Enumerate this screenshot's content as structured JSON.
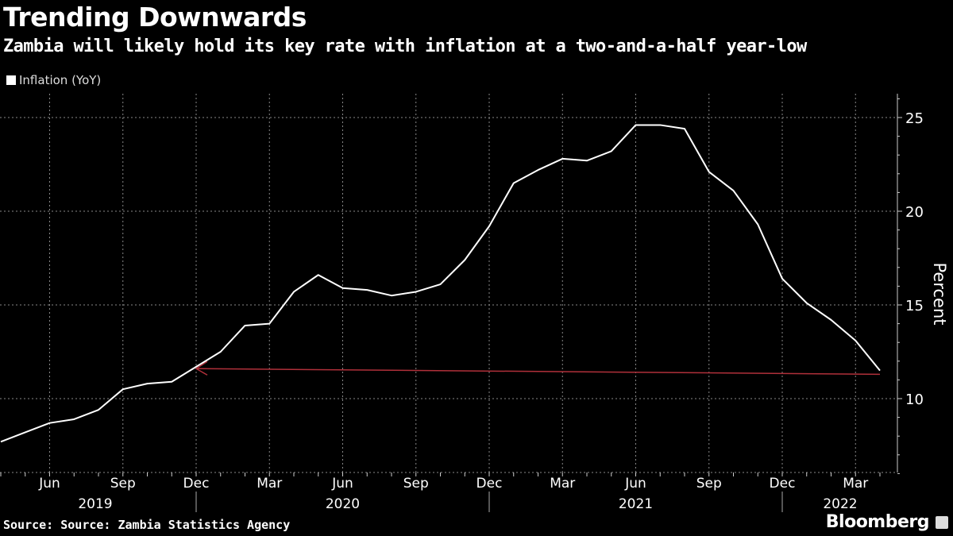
{
  "header": {
    "title": "Trending Downwards",
    "subtitle": "Zambia will likely hold its key rate with inflation at a two-and-a-half year-low"
  },
  "footer": {
    "source": "Source: Source: Zambia Statistics Agency",
    "brand": "Bloomberg"
  },
  "chart_data": {
    "type": "line",
    "title": "Trending Downwards",
    "ylabel": "Percent",
    "ylim": [
      6,
      26.2
    ],
    "yticks": [
      10,
      15,
      20,
      25
    ],
    "grid": true,
    "legend": {
      "placement": "top-left",
      "entries": [
        "Inflation (YoY)"
      ]
    },
    "month_ticks": [
      "Jun",
      "Sep",
      "Dec",
      "Mar",
      "Jun",
      "Sep",
      "Dec",
      "Mar",
      "Jun",
      "Sep",
      "Dec",
      "Mar"
    ],
    "month_tick_index": [
      2,
      5,
      8,
      11,
      14,
      17,
      20,
      23,
      26,
      29,
      32,
      35
    ],
    "years": [
      "2019",
      "2020",
      "2021",
      "2022"
    ],
    "x": [
      "2019-04",
      "2019-05",
      "2019-06",
      "2019-07",
      "2019-08",
      "2019-09",
      "2019-10",
      "2019-11",
      "2019-12",
      "2020-01",
      "2020-02",
      "2020-03",
      "2020-04",
      "2020-05",
      "2020-06",
      "2020-07",
      "2020-08",
      "2020-09",
      "2020-10",
      "2020-11",
      "2020-12",
      "2021-01",
      "2021-02",
      "2021-03",
      "2021-04",
      "2021-05",
      "2021-06",
      "2021-07",
      "2021-08",
      "2021-09",
      "2021-10",
      "2021-11",
      "2021-12",
      "2022-01",
      "2022-02",
      "2022-03",
      "2022-04"
    ],
    "series": [
      {
        "name": "Inflation (YoY)",
        "color": "#ffffff",
        "values": [
          7.7,
          8.2,
          8.7,
          8.9,
          9.4,
          10.5,
          10.8,
          10.9,
          11.7,
          12.5,
          13.9,
          14.0,
          15.7,
          16.6,
          15.9,
          15.8,
          15.5,
          15.7,
          16.1,
          17.4,
          19.2,
          21.5,
          22.2,
          22.8,
          22.7,
          23.2,
          24.6,
          24.6,
          24.4,
          22.1,
          21.1,
          19.3,
          16.4,
          15.1,
          14.2,
          13.1,
          11.5
        ]
      }
    ],
    "annotation": {
      "type": "arrow",
      "color": "#b0303a",
      "from": {
        "x": "2022-04",
        "y": 11.3
      },
      "to": {
        "x": "2019-12",
        "y": 11.6
      }
    }
  }
}
